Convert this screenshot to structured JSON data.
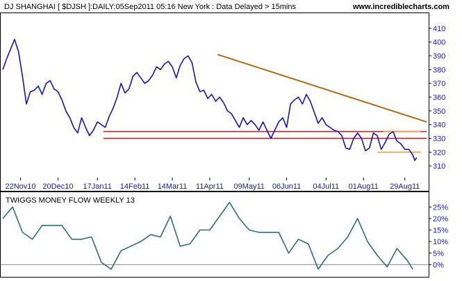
{
  "header": {
    "title": "DJ SHANGHAI [ $DJSH ]:DAILY:05Sep2011 05:16 New York  : Data Delayed > 15mins",
    "site": "www.incrediblecharts.com"
  },
  "colors": {
    "price_line": "#1414c8",
    "trendline": "#b06a14",
    "support": "#e01414",
    "box": "#f0a020",
    "indicator_line": "#2e7070",
    "axis_text": "#1a1adc",
    "zero_line": "#8a8a8a"
  },
  "chart_data": [
    {
      "type": "line",
      "name": "price",
      "ylim": [
        302,
        418
      ],
      "yticks": [
        310,
        320,
        330,
        340,
        350,
        360,
        370,
        380,
        390,
        400,
        410
      ],
      "ytick_labels": [
        "310",
        "320",
        "330",
        "340",
        "350",
        "360",
        "370",
        "380",
        "390",
        "400",
        "410"
      ],
      "xlim": [
        0,
        215
      ],
      "x_tick_positions": [
        9,
        28,
        48,
        67,
        86,
        105,
        125,
        144,
        164,
        183,
        204
      ],
      "x_tick_labels": [
        "22Nov10",
        "20Dec10",
        "17Jan11",
        "14Feb11",
        "14Mar11",
        "11Apr11",
        "09May11",
        "06Jun11",
        "04Jul11",
        "01Aug11",
        "29Aug11"
      ],
      "x": [
        0,
        2,
        4,
        6,
        8,
        10,
        12,
        14,
        16,
        18,
        20,
        22,
        24,
        26,
        28,
        30,
        32,
        34,
        36,
        38,
        40,
        42,
        44,
        46,
        48,
        50,
        52,
        54,
        56,
        58,
        60,
        62,
        64,
        66,
        68,
        70,
        72,
        74,
        76,
        78,
        80,
        82,
        84,
        86,
        88,
        90,
        92,
        94,
        96,
        98,
        100,
        102,
        104,
        106,
        108,
        110,
        112,
        114,
        116,
        118,
        120,
        122,
        124,
        126,
        128,
        130,
        132,
        134,
        136,
        138,
        140,
        142,
        144,
        146,
        148,
        150,
        152,
        154,
        156,
        158,
        160,
        162,
        164,
        166,
        168,
        170,
        172,
        174,
        176,
        178,
        180,
        182,
        184,
        186,
        188,
        190,
        192,
        194,
        196,
        198,
        200,
        202,
        204,
        206,
        208,
        209,
        210
      ],
      "values": [
        380,
        388,
        395,
        402,
        393,
        375,
        355,
        364,
        365,
        368,
        362,
        370,
        372,
        366,
        364,
        358,
        350,
        345,
        338,
        334,
        345,
        338,
        332,
        336,
        342,
        340,
        338,
        346,
        352,
        360,
        370,
        363,
        366,
        375,
        378,
        374,
        370,
        372,
        376,
        382,
        380,
        384,
        386,
        382,
        374,
        383,
        388,
        390,
        385,
        371,
        364,
        365,
        359,
        362,
        357,
        360,
        356,
        350,
        348,
        343,
        338,
        345,
        340,
        343,
        340,
        336,
        342,
        336,
        330,
        336,
        342,
        345,
        338,
        355,
        358,
        360,
        355,
        362,
        357,
        349,
        341,
        345,
        340,
        338,
        336,
        335,
        332,
        323,
        322,
        330,
        334,
        330,
        321,
        323,
        334,
        332,
        322,
        327,
        333,
        335,
        328,
        326,
        322,
        322,
        318,
        314,
        316
      ],
      "series_color_key": "price_line",
      "annotations": {
        "trendline": {
          "x1": 109,
          "y1": 391,
          "x2": 215,
          "y2": 342
        },
        "support_lines": [
          {
            "x1": 51,
            "x2": 215,
            "y": 335
          },
          {
            "x1": 51,
            "x2": 215,
            "y": 330
          }
        ],
        "support_box": [
          {
            "x1": 193,
            "x2": 212,
            "y": 335
          },
          {
            "x1": 190,
            "x2": 212,
            "y": 320
          }
        ]
      }
    },
    {
      "type": "line",
      "name": "TWIGGS MONEY FLOW WEEKLY 13",
      "ylim": [
        -5,
        29
      ],
      "yticks": [
        0,
        5,
        10,
        15,
        20,
        25
      ],
      "ytick_labels": [
        "0%",
        "5%",
        "10%",
        "15%",
        "20%",
        "25%"
      ],
      "zero_line": 0,
      "x": [
        0,
        5,
        10,
        15,
        20,
        25,
        30,
        35,
        40,
        45,
        50,
        55,
        60,
        65,
        70,
        75,
        80,
        85,
        90,
        95,
        100,
        105,
        110,
        115,
        120,
        125,
        130,
        135,
        140,
        145,
        150,
        155,
        160,
        165,
        170,
        175,
        180,
        185,
        190,
        195,
        200,
        205,
        208
      ],
      "values": [
        20,
        25,
        14,
        11,
        17,
        17,
        17,
        11,
        11,
        12,
        1,
        -2,
        6,
        8,
        10,
        13,
        12,
        21,
        8,
        9,
        15,
        15,
        21,
        27,
        20,
        15,
        14,
        14,
        14,
        5,
        11,
        9,
        -2,
        4,
        7,
        12,
        20,
        10,
        4,
        -1,
        7,
        2,
        -2
      ]
    }
  ]
}
